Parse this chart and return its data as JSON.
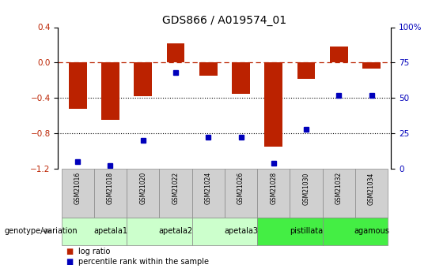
{
  "title": "GDS866 / A019574_01",
  "samples": [
    "GSM21016",
    "GSM21018",
    "GSM21020",
    "GSM21022",
    "GSM21024",
    "GSM21026",
    "GSM21028",
    "GSM21030",
    "GSM21032",
    "GSM21034"
  ],
  "log_ratio": [
    -0.52,
    -0.65,
    -0.38,
    0.22,
    -0.15,
    -0.35,
    -0.95,
    -0.18,
    0.18,
    -0.07
  ],
  "percentile_rank": [
    5,
    2,
    20,
    68,
    22,
    22,
    4,
    28,
    52,
    52
  ],
  "ylim_left": [
    -1.2,
    0.4
  ],
  "ylim_right": [
    0,
    100
  ],
  "yticks_left": [
    -1.2,
    -0.8,
    -0.4,
    0.0,
    0.4
  ],
  "yticks_right": [
    0,
    25,
    50,
    75,
    100
  ],
  "ytick_labels_right": [
    "0",
    "25",
    "50",
    "75",
    "100%"
  ],
  "hline_dotted": [
    -0.4,
    -0.8
  ],
  "bar_color": "#bb2200",
  "dot_color": "#0000bb",
  "bar_width": 0.55,
  "groups": [
    {
      "label": "apetala1",
      "start": 0,
      "end": 2,
      "color": "#ccffcc"
    },
    {
      "label": "apetala2",
      "start": 2,
      "end": 4,
      "color": "#ccffcc"
    },
    {
      "label": "apetala3",
      "start": 4,
      "end": 6,
      "color": "#ccffcc"
    },
    {
      "label": "pistillata",
      "start": 6,
      "end": 8,
      "color": "#44ee44"
    },
    {
      "label": "agamous",
      "start": 8,
      "end": 10,
      "color": "#44ee44"
    }
  ],
  "legend_log_ratio_color": "#bb2200",
  "legend_percentile_color": "#0000bb",
  "genotype_label": "genotype/variation",
  "title_fontsize": 10,
  "tick_fontsize": 7.5
}
